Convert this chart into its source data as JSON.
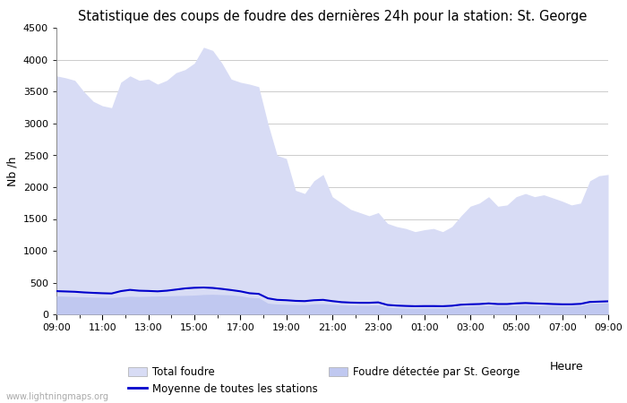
{
  "title": "Statistique des coups de foudre des dernières 24h pour la station: St. George",
  "ylabel": "Nb /h",
  "xlabel": "Heure",
  "xlim_labels": [
    "09:00",
    "11:00",
    "13:00",
    "15:00",
    "17:00",
    "19:00",
    "21:00",
    "23:00",
    "01:00",
    "03:00",
    "05:00",
    "07:00",
    "09:00"
  ],
  "ylim": [
    0,
    4500
  ],
  "yticks": [
    0,
    500,
    1000,
    1500,
    2000,
    2500,
    3000,
    3500,
    4000,
    4500
  ],
  "watermark": "www.lightningmaps.org",
  "bg_color": "#ffffff",
  "fill_total_color": "#d8dcf5",
  "fill_local_color": "#c0c8f0",
  "line_color": "#0000cc",
  "title_fontsize": 10.5,
  "total_foudre": [
    3750,
    3720,
    3680,
    3500,
    3350,
    3280,
    3250,
    3650,
    3750,
    3680,
    3700,
    3620,
    3680,
    3800,
    3850,
    3950,
    4200,
    4150,
    3950,
    3700,
    3650,
    3620,
    3580,
    3000,
    2500,
    2450,
    1950,
    1900,
    2100,
    2200,
    1850,
    1750,
    1650,
    1600,
    1550,
    1600,
    1430,
    1380,
    1350,
    1300,
    1330,
    1350,
    1300,
    1380,
    1550,
    1700,
    1750,
    1850,
    1700,
    1720,
    1850,
    1900,
    1850,
    1880,
    1830,
    1780,
    1720,
    1750,
    2100,
    2180,
    2200
  ],
  "local_foudre": [
    290,
    285,
    280,
    275,
    270,
    268,
    265,
    275,
    285,
    280,
    285,
    288,
    290,
    295,
    298,
    302,
    312,
    315,
    310,
    305,
    292,
    268,
    260,
    175,
    162,
    158,
    155,
    153,
    165,
    168,
    158,
    148,
    142,
    140,
    140,
    145,
    115,
    105,
    100,
    98,
    100,
    100,
    100,
    108,
    125,
    130,
    132,
    143,
    132,
    132,
    140,
    145,
    140,
    138,
    133,
    132,
    132,
    138,
    170,
    175,
    178
  ],
  "moyenne_line": [
    365,
    360,
    355,
    345,
    338,
    332,
    328,
    365,
    385,
    372,
    368,
    362,
    372,
    390,
    408,
    418,
    422,
    415,
    400,
    382,
    362,
    332,
    322,
    252,
    228,
    222,
    212,
    208,
    222,
    228,
    208,
    192,
    185,
    182,
    182,
    188,
    148,
    138,
    132,
    128,
    130,
    130,
    128,
    135,
    152,
    158,
    162,
    172,
    162,
    162,
    172,
    178,
    172,
    168,
    162,
    158,
    158,
    165,
    195,
    200,
    205
  ]
}
